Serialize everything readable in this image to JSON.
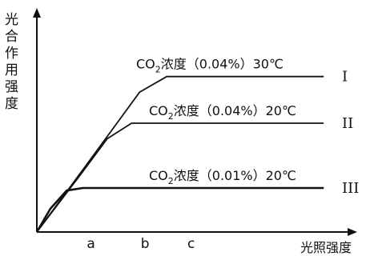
{
  "chart_data": {
    "type": "line",
    "ylabel": "光合作用强度",
    "xlabel": "光照强度",
    "x_ticks": [
      "a",
      "b",
      "c"
    ],
    "series": [
      {
        "id": "I",
        "name": "CO2浓度（0.04%）30℃",
        "label_parts": {
          "prefix": "CO",
          "sub": "2",
          "suffix": "浓度（0.04%）30℃"
        },
        "roman": "I",
        "points": [
          [
            0,
            0
          ],
          [
            0.85,
            1.2
          ],
          [
            1.9,
            2.7
          ],
          [
            2.4,
            3.0
          ],
          [
            5.3,
            3.0
          ]
        ]
      },
      {
        "id": "II",
        "name": "CO2浓度（0.04%）20℃",
        "label_parts": {
          "prefix": "CO",
          "sub": "2",
          "suffix": "浓度（0.04%）20℃"
        },
        "roman": "II",
        "points": [
          [
            0,
            0
          ],
          [
            0.8,
            1.1
          ],
          [
            1.3,
            1.8
          ],
          [
            1.75,
            2.1
          ],
          [
            5.3,
            2.1
          ]
        ]
      },
      {
        "id": "III",
        "name": "CO2浓度（0.01%）20℃",
        "label_parts": {
          "prefix": "CO",
          "sub": "2",
          "suffix": "浓度（0.01%）20℃"
        },
        "roman": "III",
        "points": [
          [
            0,
            0
          ],
          [
            0.25,
            0.45
          ],
          [
            0.55,
            0.8
          ],
          [
            0.85,
            0.85
          ],
          [
            5.3,
            0.85
          ]
        ]
      }
    ],
    "xlim": [
      0,
      5.8
    ],
    "ylim": [
      0,
      4.2
    ],
    "tick_positions": {
      "a": 1.0,
      "b": 2.0,
      "c": 2.85
    },
    "grid": false,
    "legend": "inline labels above each curve"
  }
}
